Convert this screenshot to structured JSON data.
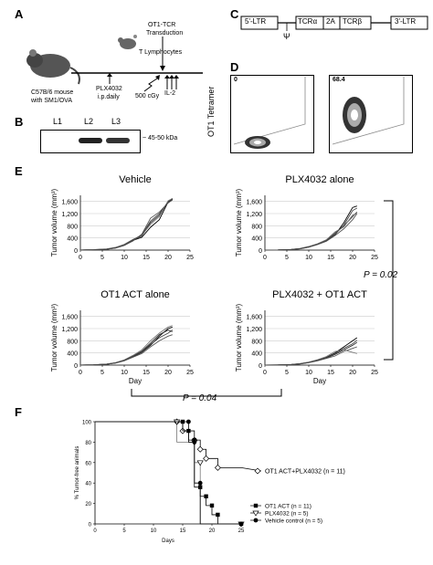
{
  "panels": {
    "a": "A",
    "b": "B",
    "c": "C",
    "d": "D",
    "e": "E",
    "f": "F"
  },
  "panel_a": {
    "mouse_label_1": "C57B/6 mouse",
    "mouse_label_2": "with SM1/OVA",
    "plx_1": "PLX4032",
    "plx_2": "i.p.daily",
    "ot1_1": "OT1-TCR",
    "ot1_2": "Transduction",
    "tlymph": "T Lymphocytes",
    "il2": "IL-2",
    "dose": "500 cGy"
  },
  "panel_b": {
    "lanes": [
      "L1",
      "L2",
      "L3"
    ],
    "size": "~ 45-50 kDa"
  },
  "panel_c": {
    "segments": [
      "5'-LTR",
      "TCRα",
      "2A",
      "TCRβ",
      "3'-LTR"
    ],
    "psi": "Ψ"
  },
  "panel_d": {
    "ylabel": "OT1 Tetramer",
    "values": [
      "0",
      "68.4"
    ]
  },
  "panel_e": {
    "ylabel": "Tumor volume (mm³)",
    "xlabel": "Day",
    "p_right": "P = 0.02",
    "p_bottom": "P = 0.04"
  },
  "chart_data": [
    {
      "type": "line",
      "title": "Vehicle",
      "xlabel": "",
      "ylabel": "Tumor volume (mm³)",
      "xlim": [
        0,
        25
      ],
      "ylim": [
        0,
        1800
      ],
      "xticks": [
        0,
        5,
        10,
        15,
        20,
        25
      ],
      "yticks": [
        0,
        400,
        800,
        1200,
        1600
      ],
      "ytick_labels": [
        "0",
        "400",
        "800",
        "1,200",
        "1,600"
      ],
      "grid": true,
      "x": [
        0,
        3,
        6,
        8,
        10,
        12,
        14,
        16,
        18,
        20,
        21
      ],
      "series": [
        {
          "values": [
            0,
            10,
            30,
            70,
            160,
            320,
            420,
            750,
            1000,
            1580,
            1680
          ]
        },
        {
          "values": [
            0,
            12,
            35,
            80,
            170,
            330,
            460,
            900,
            1150,
            1600,
            1700
          ]
        },
        {
          "values": [
            0,
            8,
            28,
            65,
            150,
            300,
            520,
            1050,
            1250,
            1550,
            1650
          ]
        },
        {
          "values": [
            0,
            15,
            40,
            90,
            190,
            350,
            480,
            850,
            1100,
            1620,
            1700
          ]
        },
        {
          "values": [
            0,
            10,
            32,
            75,
            165,
            340,
            500,
            950,
            1200,
            1570,
            1660
          ]
        }
      ]
    },
    {
      "type": "line",
      "title": "PLX4032 alone",
      "xlabel": "",
      "ylabel": "Tumor volume (mm³)",
      "xlim": [
        0,
        25
      ],
      "ylim": [
        0,
        1800
      ],
      "xticks": [
        0,
        5,
        10,
        15,
        20,
        25
      ],
      "yticks": [
        0,
        400,
        800,
        1200,
        1600
      ],
      "ytick_labels": [
        "0",
        "400",
        "800",
        "1,200",
        "1,600"
      ],
      "grid": true,
      "x": [
        0,
        3,
        6,
        8,
        10,
        12,
        14,
        16,
        18,
        20,
        21
      ],
      "series": [
        {
          "values": [
            0,
            5,
            20,
            45,
            100,
            190,
            300,
            500,
            900,
            1400,
            1450
          ]
        },
        {
          "values": [
            0,
            6,
            22,
            50,
            110,
            200,
            320,
            560,
            800,
            1100,
            1250
          ]
        },
        {
          "values": [
            0,
            4,
            18,
            40,
            95,
            180,
            290,
            480,
            700,
            1000,
            1200
          ]
        },
        {
          "values": [
            0,
            7,
            25,
            55,
            120,
            210,
            340,
            600,
            760,
            1150,
            1200
          ]
        },
        {
          "values": [
            0,
            5,
            21,
            48,
            105,
            195,
            310,
            520,
            820,
            1300,
            1380
          ]
        }
      ]
    },
    {
      "type": "line",
      "title": "OT1 ACT alone",
      "xlabel": "Day",
      "ylabel": "Tumor volume (mm³)",
      "xlim": [
        0,
        25
      ],
      "ylim": [
        0,
        1800
      ],
      "xticks": [
        0,
        5,
        10,
        15,
        20,
        25
      ],
      "yticks": [
        0,
        400,
        800,
        1200,
        1600
      ],
      "ytick_labels": [
        "0",
        "400",
        "800",
        "1,200",
        "1,600"
      ],
      "grid": true,
      "x": [
        0,
        3,
        6,
        8,
        10,
        12,
        14,
        16,
        18,
        20,
        21
      ],
      "series": [
        {
          "values": [
            0,
            8,
            30,
            70,
            150,
            280,
            420,
            650,
            950,
            1200,
            1250
          ]
        },
        {
          "values": [
            0,
            9,
            32,
            75,
            160,
            300,
            460,
            720,
            1000,
            1150,
            1100
          ]
        },
        {
          "values": [
            0,
            7,
            28,
            65,
            140,
            260,
            380,
            600,
            800,
            950,
            1000
          ]
        },
        {
          "values": [
            0,
            10,
            35,
            80,
            170,
            320,
            500,
            800,
            1050,
            1250,
            1300
          ]
        },
        {
          "values": [
            0,
            8,
            30,
            72,
            155,
            290,
            440,
            680,
            900,
            1050,
            1150
          ]
        }
      ]
    },
    {
      "type": "line",
      "title": "PLX4032 + OT1 ACT",
      "xlabel": "Day",
      "ylabel": "Tumor volume (mm³)",
      "xlim": [
        0,
        25
      ],
      "ylim": [
        0,
        1800
      ],
      "xticks": [
        0,
        5,
        10,
        15,
        20,
        25
      ],
      "yticks": [
        0,
        400,
        800,
        1200,
        1600
      ],
      "ytick_labels": [
        "0",
        "400",
        "800",
        "1,200",
        "1,600"
      ],
      "grid": true,
      "x": [
        0,
        3,
        6,
        8,
        10,
        12,
        14,
        16,
        18,
        20,
        21
      ],
      "series": [
        {
          "values": [
            0,
            5,
            20,
            45,
            90,
            160,
            250,
            400,
            600,
            800,
            900
          ]
        },
        {
          "values": [
            0,
            5,
            18,
            40,
            85,
            150,
            230,
            350,
            500,
            650,
            750
          ]
        },
        {
          "values": [
            0,
            4,
            15,
            35,
            80,
            140,
            220,
            300,
            450,
            550,
            600
          ]
        },
        {
          "values": [
            0,
            6,
            22,
            50,
            100,
            180,
            280,
            450,
            500,
            420,
            380
          ]
        },
        {
          "values": [
            0,
            5,
            19,
            42,
            88,
            155,
            240,
            380,
            550,
            700,
            820
          ]
        }
      ]
    },
    {
      "type": "line",
      "title": "",
      "xlabel": "Days",
      "ylabel": "% Tumor-free animals",
      "xlim": [
        0,
        25
      ],
      "ylim": [
        0,
        100
      ],
      "xticks": [
        0,
        5,
        10,
        15,
        20,
        25
      ],
      "yticks": [
        0,
        20,
        40,
        60,
        80,
        100
      ],
      "grid": false,
      "series": [
        {
          "name": "OT1 ACT+PLX4032 (n = 11)",
          "marker": "open-diamond",
          "x": [
            0,
            14,
            15,
            15,
            17,
            17,
            18,
            18,
            19,
            19,
            21,
            21,
            25
          ],
          "values": [
            100,
            100,
            100,
            91,
            91,
            82,
            82,
            73,
            73,
            64,
            64,
            55,
            55
          ]
        },
        {
          "name": "OT1 ACT (n = 11)",
          "marker": "filled-square",
          "x": [
            0,
            15,
            15,
            16,
            16,
            17,
            17,
            18,
            18,
            19,
            19,
            20,
            20,
            21,
            21,
            25
          ],
          "values": [
            100,
            100,
            91,
            91,
            82,
            82,
            36,
            36,
            27,
            27,
            18,
            18,
            9,
            9,
            0,
            0
          ]
        },
        {
          "name": "PLX4032 (n = 5)",
          "marker": "open-triangle-down",
          "x": [
            0,
            14,
            14,
            17,
            17,
            18,
            18,
            25
          ],
          "values": [
            100,
            100,
            80,
            80,
            60,
            60,
            0,
            0
          ]
        },
        {
          "name": "Vehicle control (n = 5)",
          "marker": "filled-circle",
          "x": [
            0,
            16,
            16,
            17,
            17,
            18,
            18,
            25
          ],
          "values": [
            100,
            100,
            80,
            80,
            40,
            40,
            0,
            0
          ]
        }
      ]
    }
  ]
}
